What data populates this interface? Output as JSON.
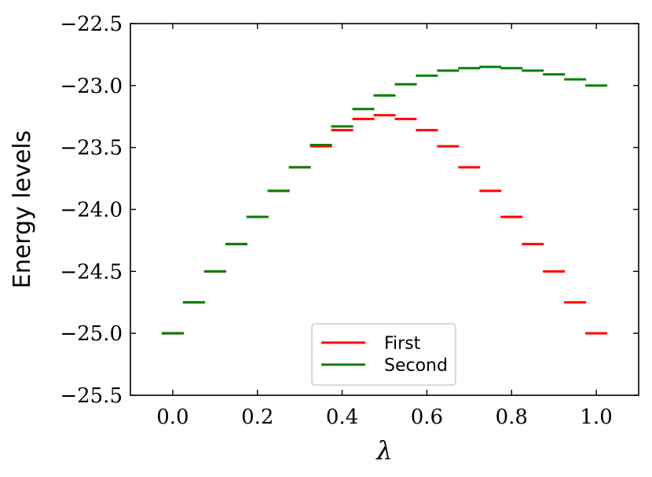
{
  "chart_data": {
    "type": "line",
    "title": "",
    "xlabel": "λ",
    "ylabel": "Energy levels",
    "xlim": [
      -0.1,
      1.1
    ],
    "ylim": [
      -25.5,
      -22.5
    ],
    "x_ticks": [
      0.0,
      0.2,
      0.4,
      0.6,
      0.8,
      1.0
    ],
    "x_tick_labels": [
      "0.0",
      "0.2",
      "0.4",
      "0.6",
      "0.8",
      "1.0"
    ],
    "y_ticks": [
      -22.5,
      -23.0,
      -23.5,
      -24.0,
      -24.5,
      -25.0,
      -25.5
    ],
    "y_tick_labels": [
      "−22.5",
      "−23.0",
      "−23.5",
      "−24.0",
      "−24.5",
      "−25.0",
      "−25.5"
    ],
    "grid": false,
    "legend_position": "bottom-center",
    "marker_style": "horizontal-dash",
    "x": [
      0.0,
      0.05,
      0.1,
      0.15,
      0.2,
      0.25,
      0.3,
      0.35,
      0.4,
      0.45,
      0.5,
      0.55,
      0.6,
      0.65,
      0.7,
      0.75,
      0.8,
      0.85,
      0.9,
      0.95,
      1.0
    ],
    "series": [
      {
        "name": "First",
        "color": "#ff0000",
        "values": [
          -25.0,
          -24.75,
          -24.5,
          -24.28,
          -24.06,
          -23.85,
          -23.66,
          -23.49,
          -23.36,
          -23.27,
          -23.24,
          -23.27,
          -23.36,
          -23.49,
          -23.66,
          -23.85,
          -24.06,
          -24.28,
          -24.5,
          -24.75,
          -25.0
        ]
      },
      {
        "name": "Second",
        "color": "#008000",
        "values": [
          -25.0,
          -24.75,
          -24.5,
          -24.28,
          -24.06,
          -23.85,
          -23.66,
          -23.48,
          -23.33,
          -23.19,
          -23.08,
          -22.99,
          -22.92,
          -22.88,
          -22.86,
          -22.85,
          -22.86,
          -22.88,
          -22.91,
          -22.95,
          -23.0
        ]
      }
    ]
  }
}
